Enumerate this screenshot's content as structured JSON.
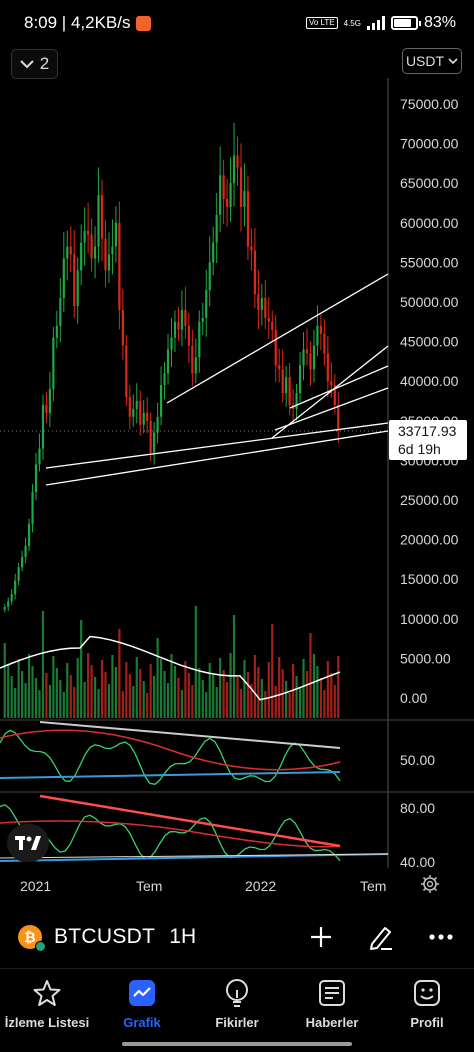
{
  "status_bar": {
    "time_speed": "8:09 | 4,2KB/s",
    "network_label": "Vo LTE",
    "network_type": "4.5G",
    "battery": "83%",
    "battery_level": 0.83
  },
  "toolbar": {
    "interval_count": "2",
    "currency": "USDT"
  },
  "price_tag": {
    "price": "33717.93",
    "countdown": "6d 19h"
  },
  "chart_data": {
    "type": "candlestick",
    "symbol": "BTCUSDT",
    "y_tick_labels": [
      "75000.00",
      "70000.00",
      "65000.00",
      "60000.00",
      "55000.00",
      "50000.00",
      "45000.00",
      "40000.00",
      "35000.00",
      "30000.00",
      "25000.00",
      "20000.00",
      "15000.00",
      "10000.00",
      "5000.00",
      "0.00"
    ],
    "y_ticks": [
      75000,
      70000,
      65000,
      60000,
      55000,
      50000,
      45000,
      40000,
      35000,
      30000,
      25000,
      20000,
      15000,
      10000,
      5000,
      0
    ],
    "ylim": [
      0,
      79000
    ],
    "x_tick_labels": [
      "2021",
      "Tem",
      "2022",
      "Tem"
    ],
    "last_price": 33717.93,
    "closes": [
      11500,
      12200,
      13100,
      14800,
      16500,
      17800,
      19200,
      22000,
      26000,
      29500,
      31500,
      37000,
      36000,
      39000,
      45500,
      47000,
      50500,
      55500,
      57000,
      56000,
      49500,
      54000,
      57500,
      59000,
      58500,
      55500,
      57000,
      63500,
      58000,
      54000,
      56000,
      57000,
      60000,
      49000,
      44500,
      38000,
      35500,
      36500,
      37500,
      34500,
      36000,
      35000,
      31000,
      33500,
      35500,
      39500,
      41000,
      44000,
      45500,
      47500,
      46500,
      49000,
      47000,
      44500,
      41000,
      43000,
      47500,
      48000,
      51500,
      55000,
      57500,
      61000,
      66000,
      63000,
      62000,
      65000,
      68500,
      67000,
      62000,
      64000,
      57000,
      56500,
      51000,
      49000,
      50500,
      48000,
      47500,
      46500,
      42000,
      41500,
      38500,
      40500,
      37000,
      36500,
      38500,
      42000,
      44000,
      43500,
      41500,
      44500,
      47000,
      46000,
      43500,
      40000,
      39500,
      37000,
      33718
    ],
    "volume_ticks": [
      "5000.00",
      "0.00"
    ],
    "indicator_1": {
      "level_label": "50.00"
    },
    "indicator_2": {
      "level_labels": [
        "80.00",
        "40.00"
      ]
    }
  },
  "symbol_bar": {
    "coin_letter": "₿",
    "symbol": "BTCUSDT",
    "interval": "1H"
  },
  "nav": {
    "items": [
      {
        "label": "İzleme Listesi",
        "icon": "star-icon"
      },
      {
        "label": "Grafik",
        "icon": "chart-icon"
      },
      {
        "label": "Fikirler",
        "icon": "idea-icon"
      },
      {
        "label": "Haberler",
        "icon": "news-icon"
      },
      {
        "label": "Profil",
        "icon": "profile-icon"
      }
    ],
    "active_index": 1
  },
  "colors": {
    "up": "#1fa846",
    "down": "#e0261c",
    "accent": "#2962ff",
    "rsi_line": "#36d36e",
    "ma_line": "#d9302b",
    "channel": "#ffffff"
  }
}
